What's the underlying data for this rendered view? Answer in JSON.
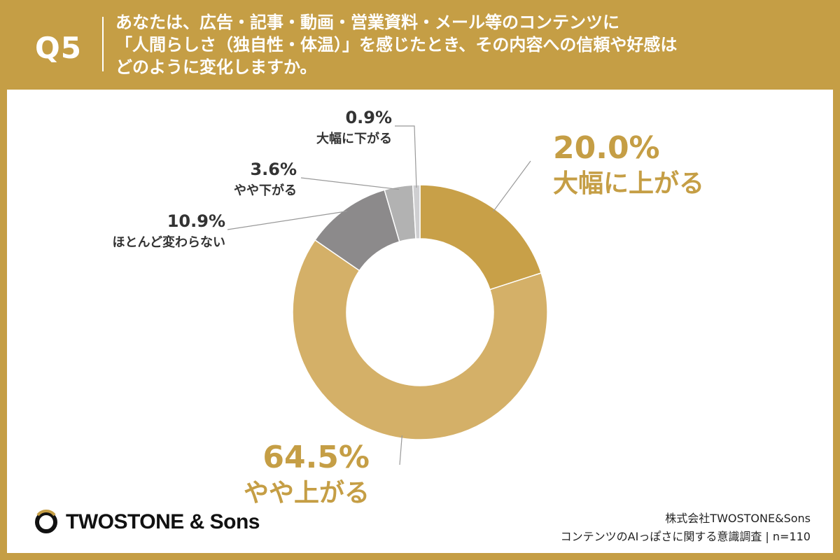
{
  "question": {
    "label": "Q5",
    "lines": [
      "あなたは、広告・記事・動画・営業資料・メール等のコンテンツに",
      "「人間らしさ（独自性・体温）」を感じたとき、その内容への信頼や好感は",
      "どのように変化しますか。"
    ]
  },
  "chart_data": {
    "type": "pie",
    "variant": "donut",
    "categories": [
      "大幅に上がる",
      "やや上がる",
      "ほとんど変わらない",
      "やや下がる",
      "大幅に下がる"
    ],
    "values": [
      20.0,
      64.5,
      10.9,
      3.6,
      0.9
    ],
    "value_labels": [
      "20.0%",
      "64.5%",
      "10.9%",
      "3.6%",
      "0.9%"
    ],
    "colors": [
      "#c8a048",
      "#d4b068",
      "#8c8a8b",
      "#b2b2b2",
      "#cfcfd1"
    ]
  },
  "brand": {
    "name": "TWOSTONE & Sons",
    "mark_icon": "circle-logo-icon"
  },
  "footer": {
    "company": "株式会社TWOSTONE&Sons",
    "survey": "コンテンツのAIっぽさに関する意識調査 | n=110"
  }
}
